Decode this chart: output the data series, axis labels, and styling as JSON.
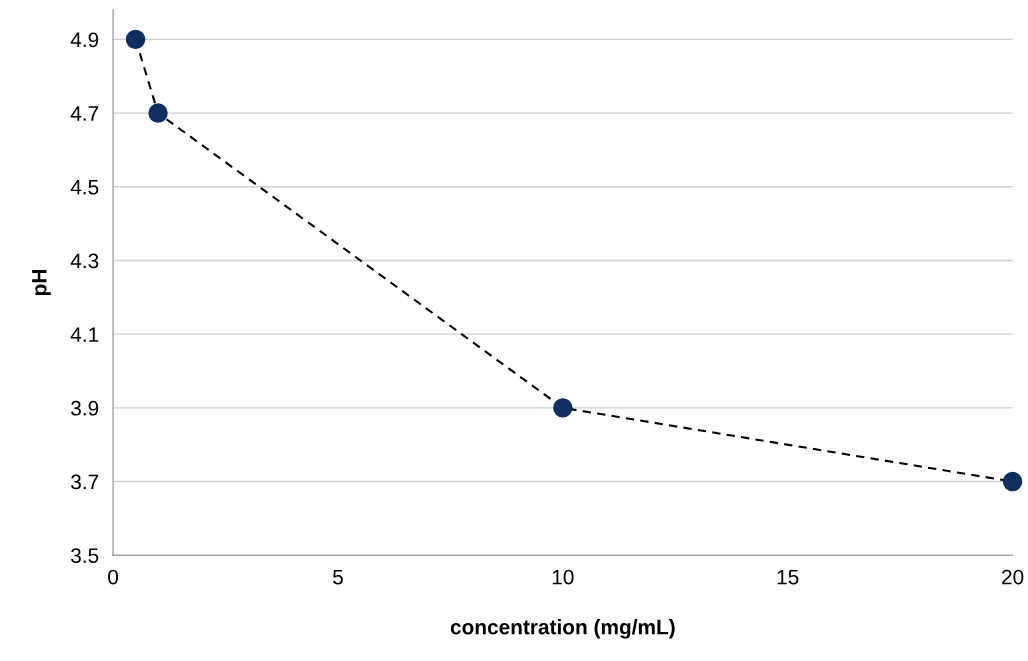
{
  "chart_data": {
    "type": "line",
    "xlabel": "concentration (mg/mL)",
    "ylabel": "pH",
    "x": [
      0.5,
      1,
      10,
      20
    ],
    "series": [
      {
        "color": "#0d3060",
        "values": [
          4.9,
          4.7,
          3.9,
          3.7
        ]
      }
    ],
    "xlim": [
      0,
      20
    ],
    "xticks": [
      0,
      5,
      10,
      15,
      20
    ],
    "ylim": [
      3.5,
      4.98
    ],
    "yticks": [
      3.5,
      3.7,
      3.9,
      4.1,
      4.3,
      4.5,
      4.7,
      4.9
    ],
    "grid": "y",
    "marker": "circle",
    "line_style": "dashed",
    "legend": false
  }
}
